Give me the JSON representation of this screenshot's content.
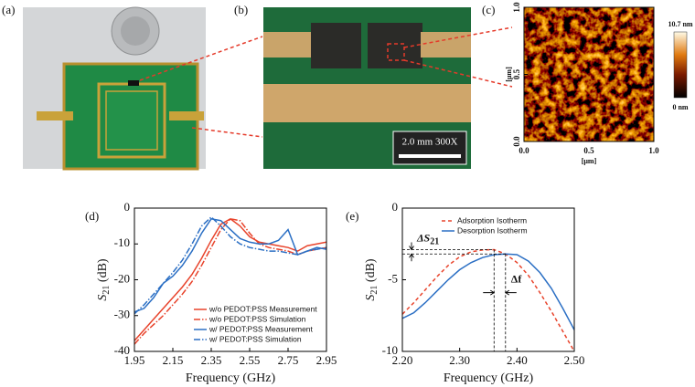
{
  "panel_labels": [
    "(a)",
    "(b)",
    "(c)",
    "(d)",
    "(e)"
  ],
  "scale_bar": "2.0 mm  300X",
  "chart_data": [
    {
      "type": "heatmap",
      "xlabel": "[μm]",
      "ylabel": "[μm]",
      "xlim": [
        0,
        1
      ],
      "ylim": [
        0,
        1
      ],
      "xticks": [
        {
          "value": 0,
          "label": "0.0"
        },
        {
          "value": 0.5,
          "label": "0.5"
        },
        {
          "value": 1,
          "label": "1.0"
        }
      ],
      "yticks": [
        {
          "value": 0,
          "label": "0.0"
        },
        {
          "value": 0.5,
          "label": "0.5"
        },
        {
          "value": 1,
          "label": "1.0"
        }
      ],
      "colorbar_labels": [
        "10.7 nm",
        "0 nm"
      ]
    },
    {
      "type": "line",
      "xlabel": "Frequency (GHz)",
      "ylabel": {
        "symbol": "S",
        "subscript": "21",
        "unit": "(dB)"
      },
      "xlim": [
        1.95,
        2.95
      ],
      "ylim": [
        -40,
        0
      ],
      "xticks": [
        1.95,
        2.15,
        2.35,
        2.55,
        2.75,
        2.95
      ],
      "yticks": [
        0,
        -10,
        -20,
        -30,
        -40
      ],
      "legend": "lower right",
      "x": [
        1.95,
        2.0,
        2.05,
        2.1,
        2.15,
        2.2,
        2.25,
        2.3,
        2.35,
        2.4,
        2.45,
        2.5,
        2.55,
        2.6,
        2.65,
        2.7,
        2.75,
        2.8,
        2.85,
        2.9,
        2.95
      ],
      "series": [
        {
          "name": "w/o PEDOT:PSS Measurement",
          "color": "#e8432b",
          "dash": "solid",
          "values": [
            -37,
            -34,
            -31,
            -28,
            -25,
            -22,
            -18.5,
            -14,
            -9,
            -4.5,
            -3,
            -5,
            -8,
            -9.5,
            -10,
            -10.5,
            -11,
            -12,
            -10.5,
            -10,
            -9.5
          ]
        },
        {
          "name": "w/o PEDOT:PSS Simulation",
          "color": "#e8432b",
          "dash": "dashdot",
          "values": [
            -38,
            -35,
            -32.5,
            -30,
            -27,
            -24,
            -20.5,
            -16,
            -11,
            -6,
            -3,
            -3.5,
            -7,
            -10,
            -11,
            -11.5,
            -12,
            -13,
            -12,
            -11.5,
            -11
          ]
        },
        {
          "name": "w/ PEDOT:PSS Measurement",
          "color": "#2b6fc4",
          "dash": "solid",
          "values": [
            -29,
            -28,
            -25,
            -21,
            -19,
            -16,
            -12,
            -7,
            -3,
            -3.5,
            -6,
            -8.5,
            -9.5,
            -10,
            -10,
            -9,
            -6,
            -13,
            -12,
            -11,
            -11.5
          ]
        },
        {
          "name": "w/ PEDOT:PSS Simulation",
          "color": "#2b6fc4",
          "dash": "dashdot",
          "values": [
            -29.5,
            -27,
            -24,
            -21,
            -18,
            -14.5,
            -10,
            -5,
            -2.5,
            -5,
            -8,
            -10,
            -11,
            -11.5,
            -12,
            -12,
            -12.5,
            -13,
            -12,
            -11.5,
            -11
          ]
        }
      ]
    },
    {
      "type": "line",
      "xlabel": "Frequency (GHz)",
      "ylabel": {
        "symbol": "S",
        "subscript": "21",
        "unit": "(dB)"
      },
      "xlim": [
        2.2,
        2.5
      ],
      "ylim": [
        -10,
        0
      ],
      "xticks": [
        {
          "value": 2.2,
          "label": "2.20"
        },
        {
          "value": 2.3,
          "label": "2.30"
        },
        {
          "value": 2.4,
          "label": "2.40"
        },
        {
          "value": 2.5,
          "label": "2.50"
        }
      ],
      "yticks": [
        0,
        -5,
        -10
      ],
      "legend": "upper right",
      "annotations": {
        "delta_s": {
          "symbol": "ΔS",
          "subscript": "21"
        },
        "delta_f": "Δf"
      },
      "x": [
        2.2,
        2.22,
        2.24,
        2.26,
        2.28,
        2.3,
        2.32,
        2.34,
        2.36,
        2.38,
        2.4,
        2.42,
        2.44,
        2.46,
        2.48,
        2.5
      ],
      "series": [
        {
          "name": "Adsorption Isotherm",
          "color": "#e8432b",
          "dash": "dash",
          "values": [
            -7.4,
            -6.6,
            -5.7,
            -4.8,
            -4.0,
            -3.4,
            -3.05,
            -2.92,
            -2.9,
            -3.2,
            -3.8,
            -4.7,
            -5.9,
            -7.2,
            -8.6,
            -10
          ]
        },
        {
          "name": "Desorption Isotherm",
          "color": "#2b6fc4",
          "dash": "solid",
          "values": [
            -7.7,
            -7.3,
            -6.6,
            -5.8,
            -5.0,
            -4.3,
            -3.8,
            -3.45,
            -3.25,
            -3.2,
            -3.25,
            -3.7,
            -4.5,
            -5.6,
            -7.0,
            -8.5
          ]
        }
      ]
    }
  ]
}
